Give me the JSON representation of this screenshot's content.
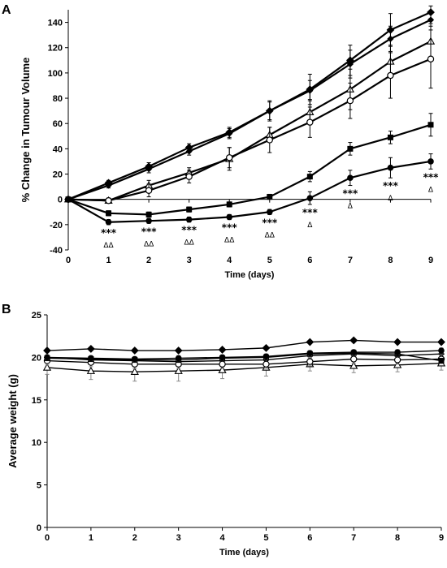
{
  "chart_data": [
    {
      "panel": "A",
      "type": "line",
      "xlabel": "Time (days)",
      "ylabel": "% Change in Tumour Volume",
      "xlim": [
        0,
        9
      ],
      "ylim": [
        -40,
        150
      ],
      "x_ticks": [
        "0",
        "1",
        "2",
        "3",
        "4",
        "5",
        "6",
        "7",
        "8",
        "9"
      ],
      "y_ticks": [
        "-40",
        "-20",
        "0",
        "20",
        "40",
        "60",
        "80",
        "100",
        "120",
        "140"
      ],
      "x": [
        0,
        1,
        2,
        3,
        4,
        5,
        6,
        7,
        8,
        9
      ],
      "series": [
        {
          "marker": "diamond",
          "values": [
            0,
            13,
            26,
            41,
            53,
            70,
            87,
            110,
            134,
            148
          ],
          "err": [
            0,
            2,
            3,
            3,
            4,
            8,
            12,
            12,
            13,
            5
          ]
        },
        {
          "marker": "diamond-small",
          "values": [
            0,
            11,
            24,
            38,
            52,
            70,
            86,
            107,
            127,
            142
          ],
          "err": [
            0,
            2,
            3,
            3,
            4,
            7,
            8,
            11,
            10,
            5
          ]
        },
        {
          "marker": "triangle-open",
          "values": [
            0,
            -1,
            11,
            21,
            32,
            51,
            69,
            87,
            109,
            125
          ],
          "err": [
            0,
            2,
            4,
            4,
            9,
            6,
            10,
            16,
            13,
            14
          ]
        },
        {
          "marker": "circle-open",
          "values": [
            0,
            -1,
            7,
            18,
            33,
            47,
            61,
            78,
            98,
            111
          ],
          "err": [
            0,
            2,
            5,
            5,
            8,
            10,
            12,
            14,
            18,
            23
          ]
        },
        {
          "marker": "square",
          "values": [
            0,
            -11,
            -12,
            -8,
            -4,
            2,
            18,
            40,
            49,
            59
          ],
          "err": [
            0,
            2,
            2,
            2,
            2,
            2,
            4,
            5,
            5,
            9
          ]
        },
        {
          "marker": "circle",
          "values": [
            0,
            -18,
            -17,
            -16,
            -14,
            -10,
            1,
            17,
            25,
            30
          ],
          "err": [
            0,
            2,
            2,
            2,
            2,
            2,
            5,
            6,
            8,
            6
          ]
        }
      ],
      "annotations": [
        {
          "x": 1,
          "stars": "***",
          "delta": "ΔΔ"
        },
        {
          "x": 2,
          "stars": "***",
          "delta": "ΔΔ"
        },
        {
          "x": 3,
          "stars": "***",
          "delta": "ΔΔ"
        },
        {
          "x": 4,
          "stars": "***",
          "delta": "ΔΔ"
        },
        {
          "x": 5,
          "stars": "***",
          "delta": "ΔΔ"
        },
        {
          "x": 6,
          "stars": "***",
          "delta": "Δ"
        },
        {
          "x": 7,
          "stars": "***",
          "delta": "Δ"
        },
        {
          "x": 8,
          "stars": "***",
          "delta": "Δ"
        },
        {
          "x": 9,
          "stars": "***",
          "delta": "Δ"
        }
      ]
    },
    {
      "panel": "B",
      "type": "line",
      "xlabel": "Time (days)",
      "ylabel": "Average weight (g)",
      "xlim": [
        0,
        9
      ],
      "ylim": [
        0,
        25
      ],
      "x_ticks": [
        "0",
        "1",
        "2",
        "3",
        "4",
        "5",
        "6",
        "7",
        "8",
        "9"
      ],
      "y_ticks": [
        "0",
        "5",
        "10",
        "15",
        "20",
        "25"
      ],
      "x": [
        0,
        1,
        2,
        3,
        4,
        5,
        6,
        7,
        8,
        9
      ],
      "series": [
        {
          "marker": "diamond",
          "values": [
            20.8,
            21.0,
            20.8,
            20.8,
            20.9,
            21.1,
            21.8,
            22.0,
            21.8,
            21.8
          ],
          "err": [
            0.2,
            0.2,
            0.2,
            0.2,
            0.2,
            0.2,
            0.2,
            0.2,
            0.2,
            0.2
          ]
        },
        {
          "marker": "diamond-small",
          "values": [
            20.0,
            19.7,
            19.6,
            19.5,
            19.6,
            19.7,
            20.2,
            20.4,
            20.2,
            20.4
          ],
          "err": [
            0.3,
            0.3,
            0.3,
            0.3,
            0.3,
            0.3,
            0.3,
            0.3,
            0.3,
            0.3
          ]
        },
        {
          "marker": "triangle-open",
          "values": [
            18.8,
            18.4,
            18.3,
            18.4,
            18.5,
            18.8,
            19.2,
            19.0,
            19.1,
            19.3
          ],
          "err": [
            0.8,
            1.0,
            1.1,
            1.2,
            1.0,
            1.0,
            0.8,
            0.8,
            0.8,
            0.8
          ]
        },
        {
          "marker": "circle-open",
          "values": [
            19.6,
            19.4,
            19.2,
            19.2,
            19.2,
            19.2,
            19.5,
            19.8,
            19.7,
            19.8
          ],
          "err": [
            0.5,
            0.5,
            0.5,
            0.5,
            0.5,
            0.5,
            0.5,
            0.5,
            0.5,
            0.5
          ]
        },
        {
          "marker": "square",
          "values": [
            19.9,
            19.8,
            19.7,
            19.7,
            19.9,
            20.0,
            20.4,
            20.5,
            20.4,
            19.6
          ],
          "err": [
            0.3,
            0.3,
            0.3,
            0.3,
            0.3,
            0.3,
            0.3,
            0.3,
            0.3,
            0.3
          ]
        },
        {
          "marker": "circle",
          "values": [
            20.0,
            19.9,
            19.8,
            19.9,
            20.0,
            20.1,
            20.5,
            20.6,
            20.6,
            20.8
          ],
          "err": [
            0.3,
            0.3,
            0.3,
            0.3,
            0.3,
            0.3,
            0.3,
            0.3,
            0.3,
            0.3
          ]
        }
      ]
    }
  ]
}
